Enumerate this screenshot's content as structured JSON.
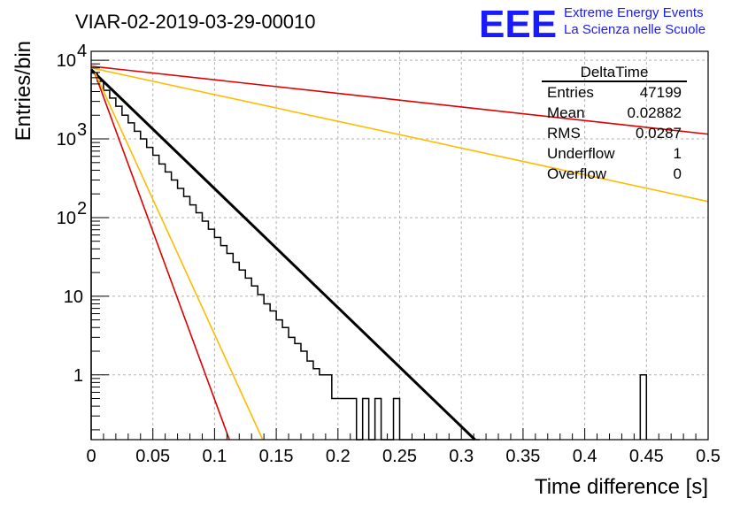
{
  "chart_data": {
    "type": "line",
    "title": "VIAR-02-2019-03-29-00010",
    "xlabel": "Time difference [s]",
    "ylabel": "Entries/bin",
    "xlim": [
      0,
      0.5
    ],
    "ylim": [
      0.15,
      13000
    ],
    "y_scale": "log",
    "grid": true,
    "x_ticks": [
      {
        "v": 0,
        "label": "0"
      },
      {
        "v": 0.05,
        "label": "0.05"
      },
      {
        "v": 0.1,
        "label": "0.1"
      },
      {
        "v": 0.15,
        "label": "0.15"
      },
      {
        "v": 0.2,
        "label": "0.2"
      },
      {
        "v": 0.25,
        "label": "0.25"
      },
      {
        "v": 0.3,
        "label": "0.3"
      },
      {
        "v": 0.35,
        "label": "0.35"
      },
      {
        "v": 0.4,
        "label": "0.4"
      },
      {
        "v": 0.45,
        "label": "0.45"
      },
      {
        "v": 0.5,
        "label": "0.5"
      }
    ],
    "y_ticks": [
      {
        "v": 1,
        "label": "1"
      },
      {
        "v": 10,
        "label": "10"
      },
      {
        "v": 100,
        "label": "10",
        "exp": "2"
      },
      {
        "v": 1000,
        "label": "10",
        "exp": "3"
      },
      {
        "v": 10000,
        "label": "10",
        "exp": "4"
      }
    ],
    "histogram": {
      "name": "DeltaTime",
      "bin_width": 0.005,
      "color": "#000000",
      "bins": [
        {
          "x": 0.0,
          "y": 6900
        },
        {
          "x": 0.005,
          "y": 5400
        },
        {
          "x": 0.01,
          "y": 4150
        },
        {
          "x": 0.015,
          "y": 3300
        },
        {
          "x": 0.02,
          "y": 2600
        },
        {
          "x": 0.025,
          "y": 2000
        },
        {
          "x": 0.03,
          "y": 1600
        },
        {
          "x": 0.035,
          "y": 1250
        },
        {
          "x": 0.04,
          "y": 1000
        },
        {
          "x": 0.045,
          "y": 780
        },
        {
          "x": 0.05,
          "y": 620
        },
        {
          "x": 0.055,
          "y": 480
        },
        {
          "x": 0.06,
          "y": 380
        },
        {
          "x": 0.065,
          "y": 300
        },
        {
          "x": 0.07,
          "y": 235
        },
        {
          "x": 0.075,
          "y": 185
        },
        {
          "x": 0.08,
          "y": 145
        },
        {
          "x": 0.085,
          "y": 115
        },
        {
          "x": 0.09,
          "y": 90
        },
        {
          "x": 0.095,
          "y": 71
        },
        {
          "x": 0.1,
          "y": 56
        },
        {
          "x": 0.105,
          "y": 44
        },
        {
          "x": 0.11,
          "y": 35
        },
        {
          "x": 0.115,
          "y": 27
        },
        {
          "x": 0.12,
          "y": 21.5
        },
        {
          "x": 0.125,
          "y": 17
        },
        {
          "x": 0.13,
          "y": 13.5
        },
        {
          "x": 0.135,
          "y": 10.5
        },
        {
          "x": 0.14,
          "y": 8
        },
        {
          "x": 0.145,
          "y": 6.5
        },
        {
          "x": 0.15,
          "y": 5
        },
        {
          "x": 0.155,
          "y": 4
        },
        {
          "x": 0.16,
          "y": 3
        },
        {
          "x": 0.165,
          "y": 2.5
        },
        {
          "x": 0.17,
          "y": 2
        },
        {
          "x": 0.175,
          "y": 1.5
        },
        {
          "x": 0.18,
          "y": 1.2
        },
        {
          "x": 0.185,
          "y": 1
        },
        {
          "x": 0.19,
          "y": 1
        },
        {
          "x": 0.195,
          "y": 0.5
        },
        {
          "x": 0.2,
          "y": 0.5
        },
        {
          "x": 0.205,
          "y": 0.5
        },
        {
          "x": 0.21,
          "y": 0.5
        },
        {
          "x": 0.215,
          "y": 0
        },
        {
          "x": 0.22,
          "y": 0.5
        },
        {
          "x": 0.225,
          "y": 0
        },
        {
          "x": 0.23,
          "y": 0.5
        },
        {
          "x": 0.235,
          "y": 0
        },
        {
          "x": 0.24,
          "y": 0
        },
        {
          "x": 0.245,
          "y": 0.5
        },
        {
          "x": 0.25,
          "y": 0
        },
        {
          "x": 0.255,
          "y": 0
        },
        {
          "x": 0.26,
          "y": 0
        },
        {
          "x": 0.265,
          "y": 0
        },
        {
          "x": 0.27,
          "y": 0
        },
        {
          "x": 0.275,
          "y": 0
        },
        {
          "x": 0.28,
          "y": 0
        },
        {
          "x": 0.285,
          "y": 0
        },
        {
          "x": 0.29,
          "y": 0
        },
        {
          "x": 0.295,
          "y": 0
        },
        {
          "x": 0.3,
          "y": 0
        },
        {
          "x": 0.305,
          "y": 0
        },
        {
          "x": 0.31,
          "y": 0
        },
        {
          "x": 0.445,
          "y": 1
        }
      ],
      "bins_override_note": ""
    },
    "fit_lines": [
      {
        "color": "#000000",
        "width": 3,
        "points": [
          [
            0,
            7600
          ],
          [
            0.311,
            0.15
          ]
        ]
      },
      {
        "color": "#dd0000",
        "width": 1.6,
        "points": [
          [
            0,
            8400
          ],
          [
            0.5,
            1150
          ]
        ]
      },
      {
        "color": "#ffbb00",
        "width": 1.6,
        "points": [
          [
            0,
            8000
          ],
          [
            0.5,
            160
          ]
        ]
      },
      {
        "color": "#dd0000",
        "width": 1.6,
        "points": [
          [
            0.003,
            6800
          ],
          [
            0.112,
            0.15
          ]
        ]
      },
      {
        "color": "#ffbb00",
        "width": 1.6,
        "points": [
          [
            0.003,
            7000
          ],
          [
            0.139,
            0.15
          ]
        ]
      }
    ]
  },
  "stats_box": {
    "title": "DeltaTime",
    "rows": [
      {
        "label": "Entries",
        "value": "47199"
      },
      {
        "label": "Mean",
        "value": "0.02882"
      },
      {
        "label": "RMS",
        "value": "0.0287"
      },
      {
        "label": "Underflow",
        "value": "1"
      },
      {
        "label": "Overflow",
        "value": "0"
      }
    ]
  },
  "logo": {
    "mark": "EEE",
    "line1": "Extreme Energy Events",
    "line2": "La Scienza nelle Scuole"
  }
}
